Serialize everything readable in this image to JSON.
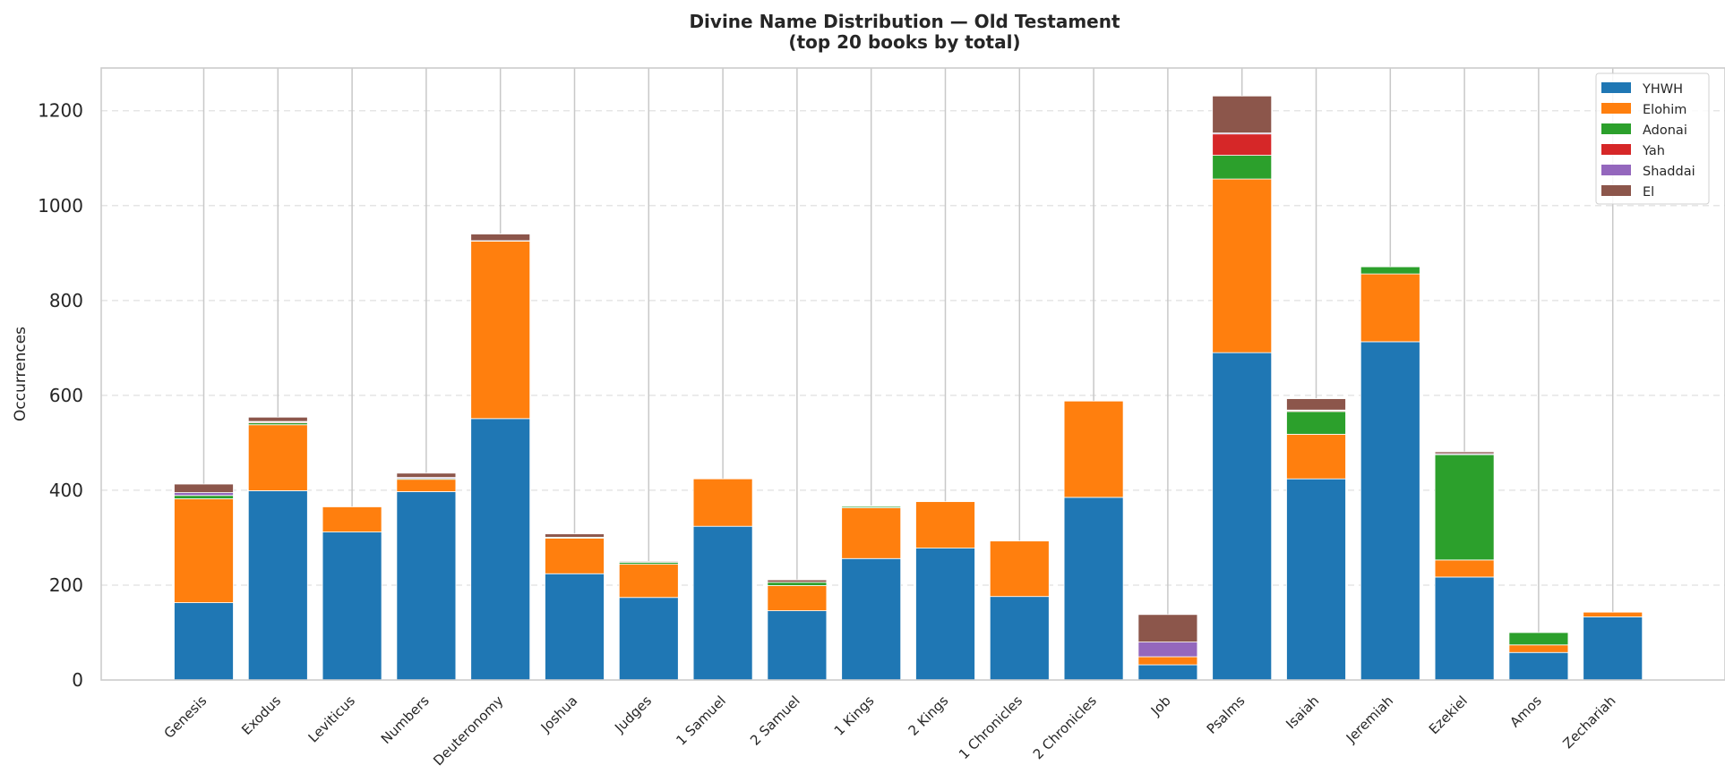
{
  "chart_data": {
    "type": "bar",
    "stacked": true,
    "title": "Divine Name Distribution — Old Testament",
    "subtitle": "(top 20 books by total)",
    "xlabel": "",
    "ylabel": "Occurrences",
    "ylim": [
      0,
      1290
    ],
    "yticks": [
      0,
      200,
      400,
      600,
      800,
      1000,
      1200
    ],
    "grid": "horizontal dashed",
    "legend_position": "top-right",
    "categories": [
      "Genesis",
      "Exodus",
      "Leviticus",
      "Numbers",
      "Deuteronomy",
      "Joshua",
      "Judges",
      "1 Samuel",
      "2 Samuel",
      "1 Kings",
      "2 Kings",
      "1 Chronicles",
      "2 Chronicles",
      "Job",
      "Psalms",
      "Isaiah",
      "Jeremiah",
      "Ezekiel",
      "Amos",
      "Zechariah"
    ],
    "series": [
      {
        "name": "YHWH",
        "color": "#1f77b4",
        "values": [
          163,
          399,
          312,
          397,
          551,
          224,
          174,
          324,
          146,
          256,
          278,
          176,
          385,
          32,
          690,
          424,
          713,
          217,
          58,
          133
        ]
      },
      {
        "name": "Elohim",
        "color": "#ff7f0e",
        "values": [
          219,
          139,
          53,
          26,
          374,
          75,
          70,
          100,
          53,
          107,
          98,
          117,
          203,
          17,
          366,
          94,
          143,
          36,
          16,
          10
        ]
      },
      {
        "name": "Adonai",
        "color": "#2ca02c",
        "values": [
          7,
          4,
          0,
          2,
          1,
          2,
          4,
          0,
          7,
          3,
          0,
          0,
          0,
          0,
          50,
          48,
          15,
          222,
          26,
          0
        ]
      },
      {
        "name": "Yah",
        "color": "#d62728",
        "values": [
          0,
          2,
          0,
          0,
          0,
          0,
          0,
          0,
          0,
          0,
          0,
          0,
          0,
          0,
          45,
          2,
          0,
          0,
          0,
          0
        ]
      },
      {
        "name": "Shaddai",
        "color": "#9467bd",
        "values": [
          6,
          1,
          0,
          2,
          0,
          0,
          0,
          0,
          0,
          0,
          0,
          0,
          0,
          31,
          2,
          1,
          0,
          2,
          0,
          0
        ]
      },
      {
        "name": "El",
        "color": "#8c564b",
        "values": [
          18,
          9,
          0,
          9,
          14,
          7,
          2,
          0,
          5,
          1,
          0,
          0,
          0,
          58,
          78,
          24,
          0,
          4,
          0,
          0
        ]
      }
    ],
    "colors": {
      "background": "#ffffff",
      "grid": "#e5e5e5",
      "spine": "#cccccc",
      "stem": "#c8c8c8",
      "text": "#262626"
    }
  }
}
